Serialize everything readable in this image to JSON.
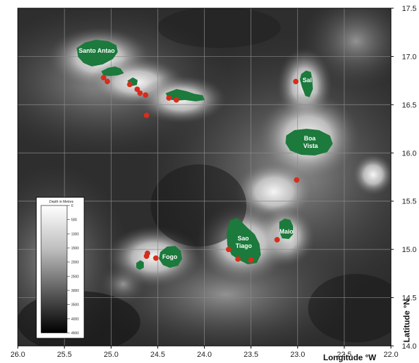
{
  "map": {
    "x_axis_title": "Longitude °W",
    "y_axis_title": "Latitude °N",
    "lon_ticks": [
      "26.0",
      "25.5",
      "25.0",
      "24.5",
      "24.0",
      "23.5",
      "23.0",
      "22.5",
      "22.0"
    ],
    "lat_ticks": [
      "17.5",
      "17.0",
      "16.5",
      "16.0",
      "15.5",
      "15.0",
      "14.5",
      "14.0"
    ],
    "lon_range": [
      26.0,
      22.0
    ],
    "lat_range": [
      14.0,
      17.5
    ],
    "grid": true,
    "colors": {
      "land": "#1b7a3c",
      "site_marker": "#d62d1c",
      "deep_water": "#0b0b0b",
      "shallow_water": "#f4f4f4",
      "grid": "#8a8a8a"
    }
  },
  "legend": {
    "title": "Depth in Metres",
    "ticks": [
      "0",
      "500",
      "1000",
      "1500",
      "2000",
      "2500",
      "3000",
      "3500",
      "4000",
      "4500"
    ]
  },
  "islands": [
    {
      "name": "Santo Antao",
      "label": "Santo Antao"
    },
    {
      "name": "Sao Vicente",
      "label": ""
    },
    {
      "name": "Santa Luzia",
      "label": ""
    },
    {
      "name": "Sao Nicolau",
      "label": ""
    },
    {
      "name": "Sal",
      "label": "Sal"
    },
    {
      "name": "Boa Vista",
      "label_lines": [
        "Boa",
        "Vista"
      ]
    },
    {
      "name": "Maio",
      "label": "Maio"
    },
    {
      "name": "Sao Tiago",
      "label_lines": [
        "Sao",
        "Tiago"
      ]
    },
    {
      "name": "Fogo",
      "label": "Fogo"
    },
    {
      "name": "Brava",
      "label": ""
    }
  ],
  "sites": [
    {
      "lon": 25.08,
      "lat": 16.78
    },
    {
      "lon": 25.04,
      "lat": 16.74
    },
    {
      "lon": 24.8,
      "lat": 16.71
    },
    {
      "lon": 24.72,
      "lat": 16.66
    },
    {
      "lon": 24.69,
      "lat": 16.62
    },
    {
      "lon": 24.63,
      "lat": 16.6
    },
    {
      "lon": 24.38,
      "lat": 16.57
    },
    {
      "lon": 24.3,
      "lat": 16.55
    },
    {
      "lon": 24.62,
      "lat": 16.39
    },
    {
      "lon": 23.02,
      "lat": 16.74
    },
    {
      "lon": 23.01,
      "lat": 15.72
    },
    {
      "lon": 23.22,
      "lat": 15.1
    },
    {
      "lon": 23.74,
      "lat": 15.0
    },
    {
      "lon": 23.64,
      "lat": 14.9
    },
    {
      "lon": 23.5,
      "lat": 14.89
    },
    {
      "lon": 24.61,
      "lat": 14.96
    },
    {
      "lon": 24.62,
      "lat": 14.93
    },
    {
      "lon": 24.52,
      "lat": 14.91
    }
  ]
}
